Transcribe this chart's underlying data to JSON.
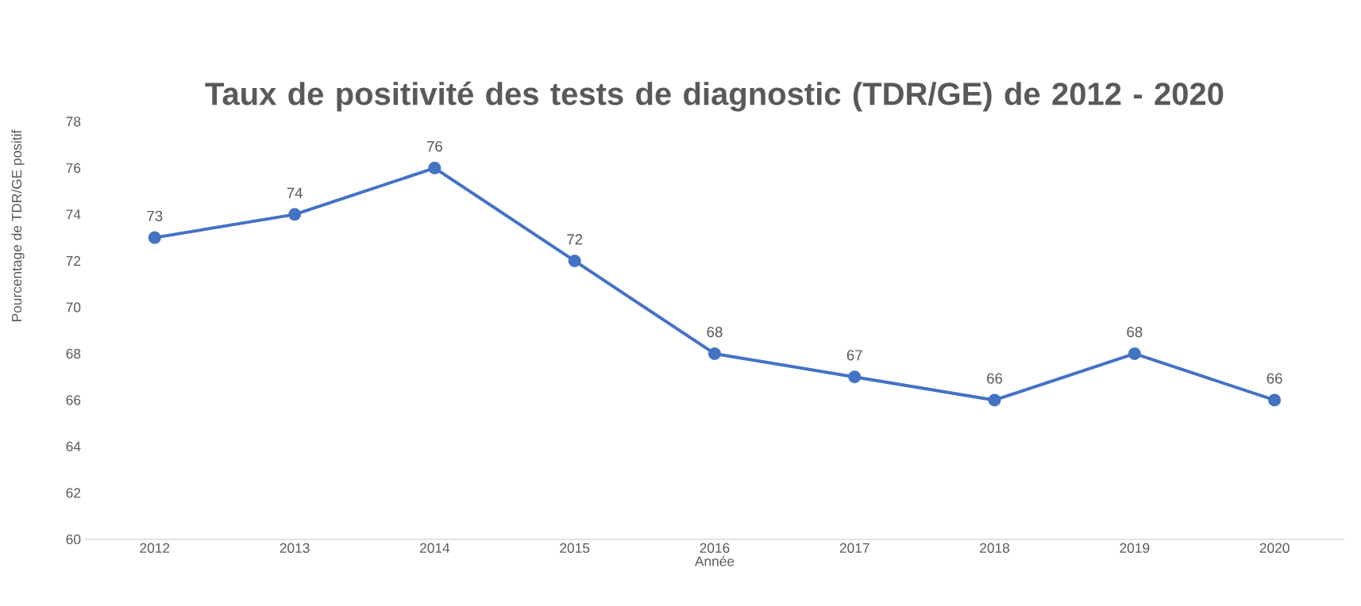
{
  "chart_data": {
    "type": "line",
    "title": "Taux de positivité des tests de diagnostic (TDR/GE) de 2012 - 2020",
    "xlabel": "Année",
    "ylabel": "Pourcentage de TDR/GE positif",
    "categories": [
      "2012",
      "2013",
      "2014",
      "2015",
      "2016",
      "2017",
      "2018",
      "2019",
      "2020"
    ],
    "series": [
      {
        "color": "#4472c4",
        "values": [
          73,
          74,
          76,
          72,
          68,
          67,
          66,
          68,
          66
        ]
      }
    ],
    "ylim": [
      60,
      78
    ],
    "yticks": [
      60,
      62,
      64,
      66,
      68,
      70,
      72,
      74,
      76,
      78
    ],
    "data_labels": true,
    "marker": "circle",
    "line_style": "solid",
    "grid": false
  }
}
